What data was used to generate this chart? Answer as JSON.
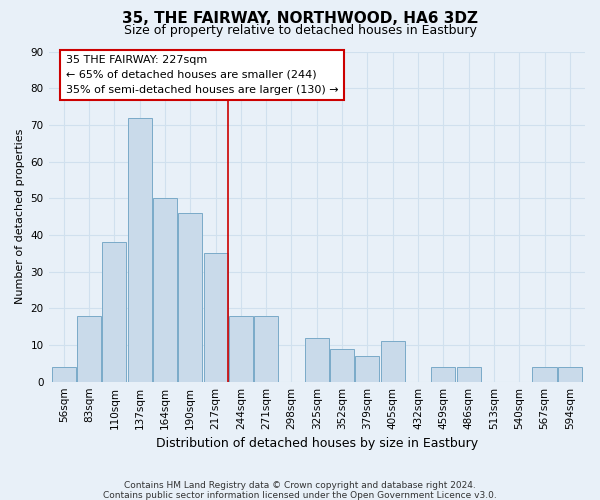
{
  "title": "35, THE FAIRWAY, NORTHWOOD, HA6 3DZ",
  "subtitle": "Size of property relative to detached houses in Eastbury",
  "xlabel": "Distribution of detached houses by size in Eastbury",
  "ylabel": "Number of detached properties",
  "bin_labels": [
    "56sqm",
    "83sqm",
    "110sqm",
    "137sqm",
    "164sqm",
    "190sqm",
    "217sqm",
    "244sqm",
    "271sqm",
    "298sqm",
    "325sqm",
    "352sqm",
    "379sqm",
    "405sqm",
    "432sqm",
    "459sqm",
    "486sqm",
    "513sqm",
    "540sqm",
    "567sqm",
    "594sqm"
  ],
  "bin_values": [
    4,
    18,
    38,
    72,
    50,
    46,
    35,
    18,
    18,
    0,
    12,
    9,
    7,
    11,
    0,
    4,
    4,
    0,
    0,
    4,
    4
  ],
  "bar_color": "#c9daea",
  "bar_edge_color": "#7aaac8",
  "grid_color": "#d0e0ee",
  "vline_x_index": 6.5,
  "annotation_box_text": "35 THE FAIRWAY: 227sqm\n← 65% of detached houses are smaller (244)\n35% of semi-detached houses are larger (130) →",
  "annotation_box_color": "#ffffff",
  "annotation_box_edge_color": "#cc0000",
  "vline_color": "#cc0000",
  "ylim": [
    0,
    90
  ],
  "yticks": [
    0,
    10,
    20,
    30,
    40,
    50,
    60,
    70,
    80,
    90
  ],
  "footnote1": "Contains HM Land Registry data © Crown copyright and database right 2024.",
  "footnote2": "Contains public sector information licensed under the Open Government Licence v3.0.",
  "background_color": "#e8f0f8",
  "plot_bg_color": "#e8f0f8",
  "title_fontsize": 11,
  "subtitle_fontsize": 9,
  "ylabel_fontsize": 8,
  "xlabel_fontsize": 9,
  "tick_fontsize": 7.5,
  "annotation_fontsize": 8,
  "footnote_fontsize": 6.5
}
